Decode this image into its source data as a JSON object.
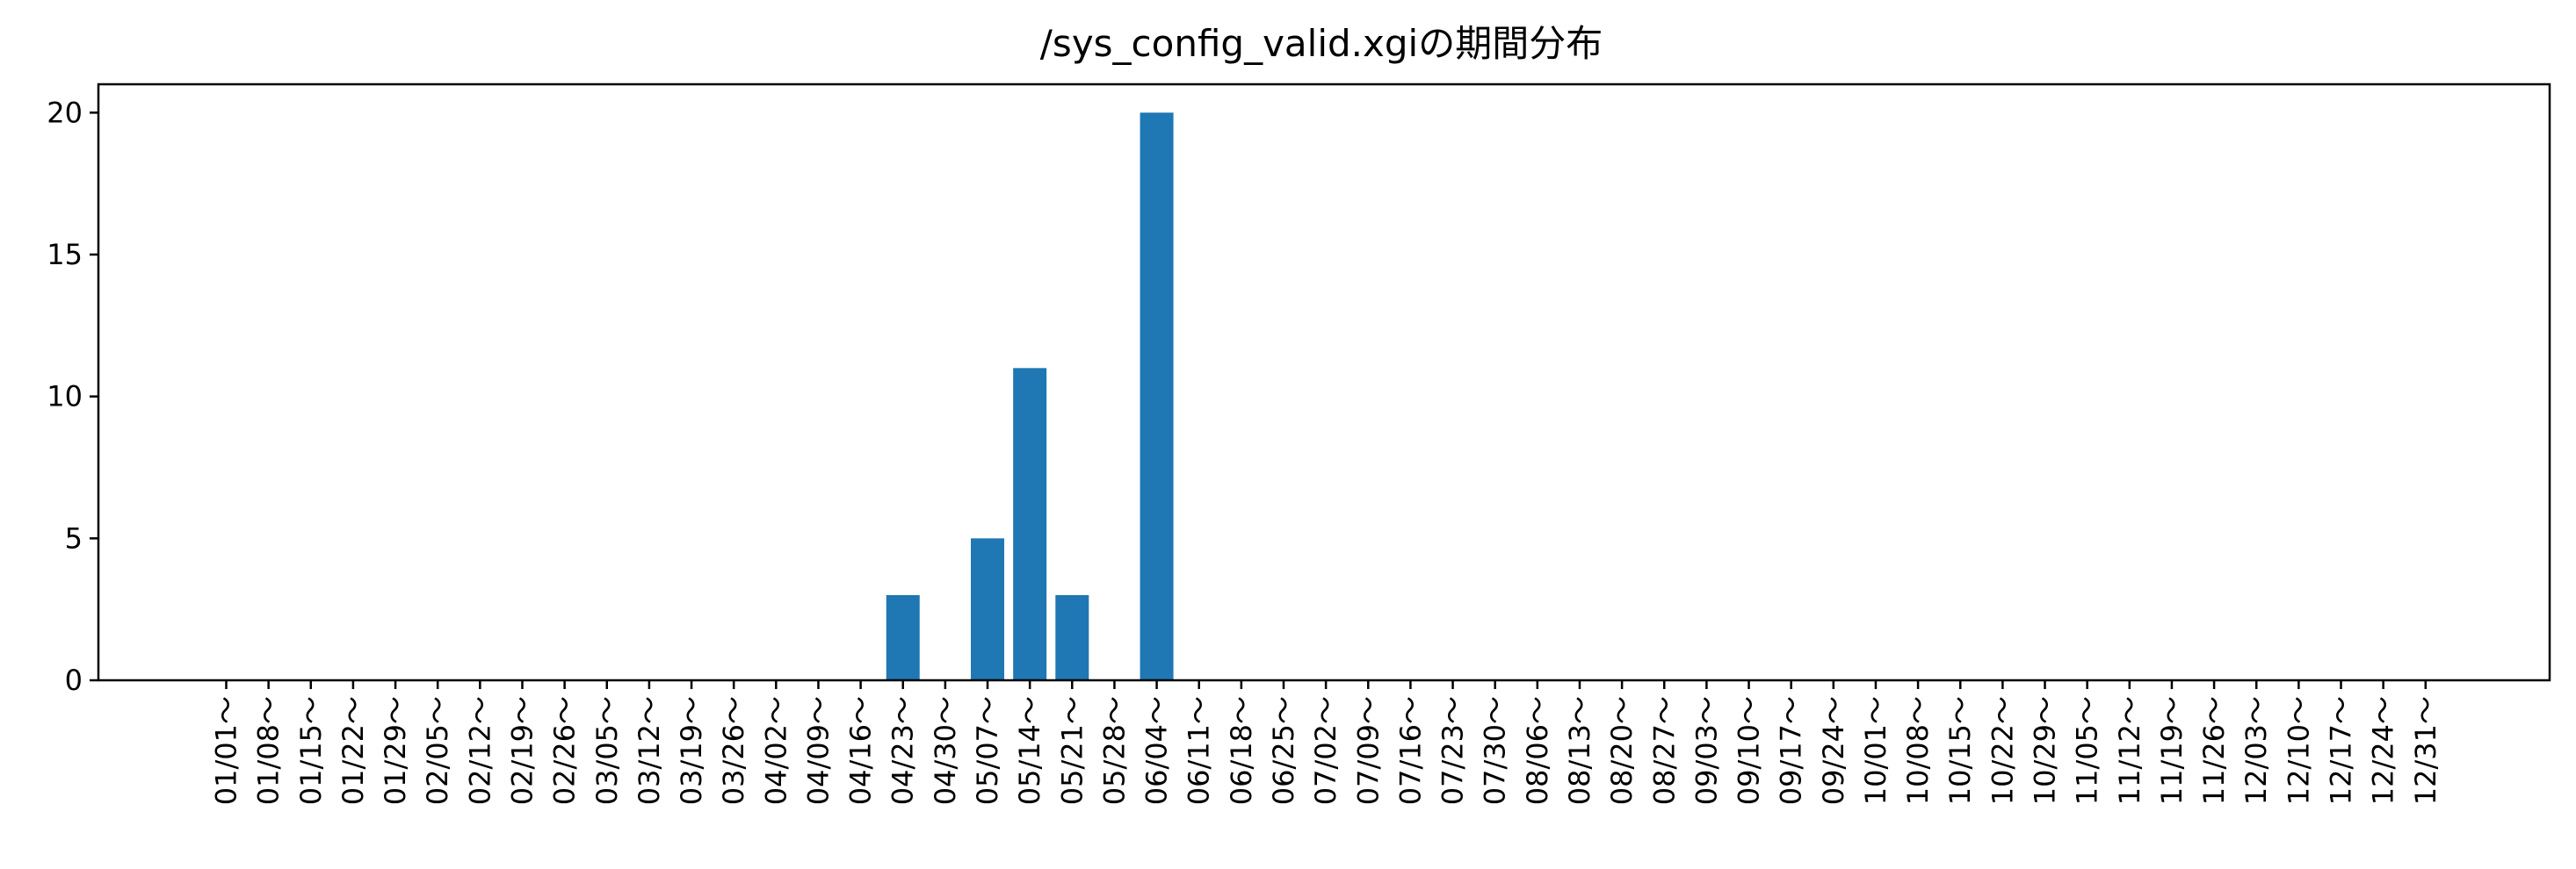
{
  "chart_data": {
    "type": "bar",
    "title": "/sys_config_valid.xgiの期間分布",
    "xlabel": "",
    "ylabel": "",
    "ylim": [
      0,
      21
    ],
    "yticks": [
      0,
      5,
      10,
      15,
      20
    ],
    "grid": false,
    "bar_color": "#1f77b4",
    "categories": [
      "01/01～",
      "01/08～",
      "01/15～",
      "01/22～",
      "01/29～",
      "02/05～",
      "02/12～",
      "02/19～",
      "02/26～",
      "03/05～",
      "03/12～",
      "03/19～",
      "03/26～",
      "04/02～",
      "04/09～",
      "04/16～",
      "04/23～",
      "04/30～",
      "05/07～",
      "05/14～",
      "05/21～",
      "05/28～",
      "06/04～",
      "06/11～",
      "06/18～",
      "06/25～",
      "07/02～",
      "07/09～",
      "07/16～",
      "07/23～",
      "07/30～",
      "08/06～",
      "08/13～",
      "08/20～",
      "08/27～",
      "09/03～",
      "09/10～",
      "09/17～",
      "09/24～",
      "10/01～",
      "10/08～",
      "10/15～",
      "10/22～",
      "10/29～",
      "11/05～",
      "11/12～",
      "11/19～",
      "11/26～",
      "12/03～",
      "12/10～",
      "12/17～",
      "12/24～",
      "12/31～"
    ],
    "values": [
      0,
      0,
      0,
      0,
      0,
      0,
      0,
      0,
      0,
      0,
      0,
      0,
      0,
      0,
      0,
      0,
      3,
      0,
      5,
      11,
      3,
      0,
      20,
      0,
      0,
      0,
      0,
      0,
      0,
      0,
      0,
      0,
      0,
      0,
      0,
      0,
      0,
      0,
      0,
      0,
      0,
      0,
      0,
      0,
      0,
      0,
      0,
      0,
      0,
      0,
      0,
      0,
      0
    ]
  }
}
